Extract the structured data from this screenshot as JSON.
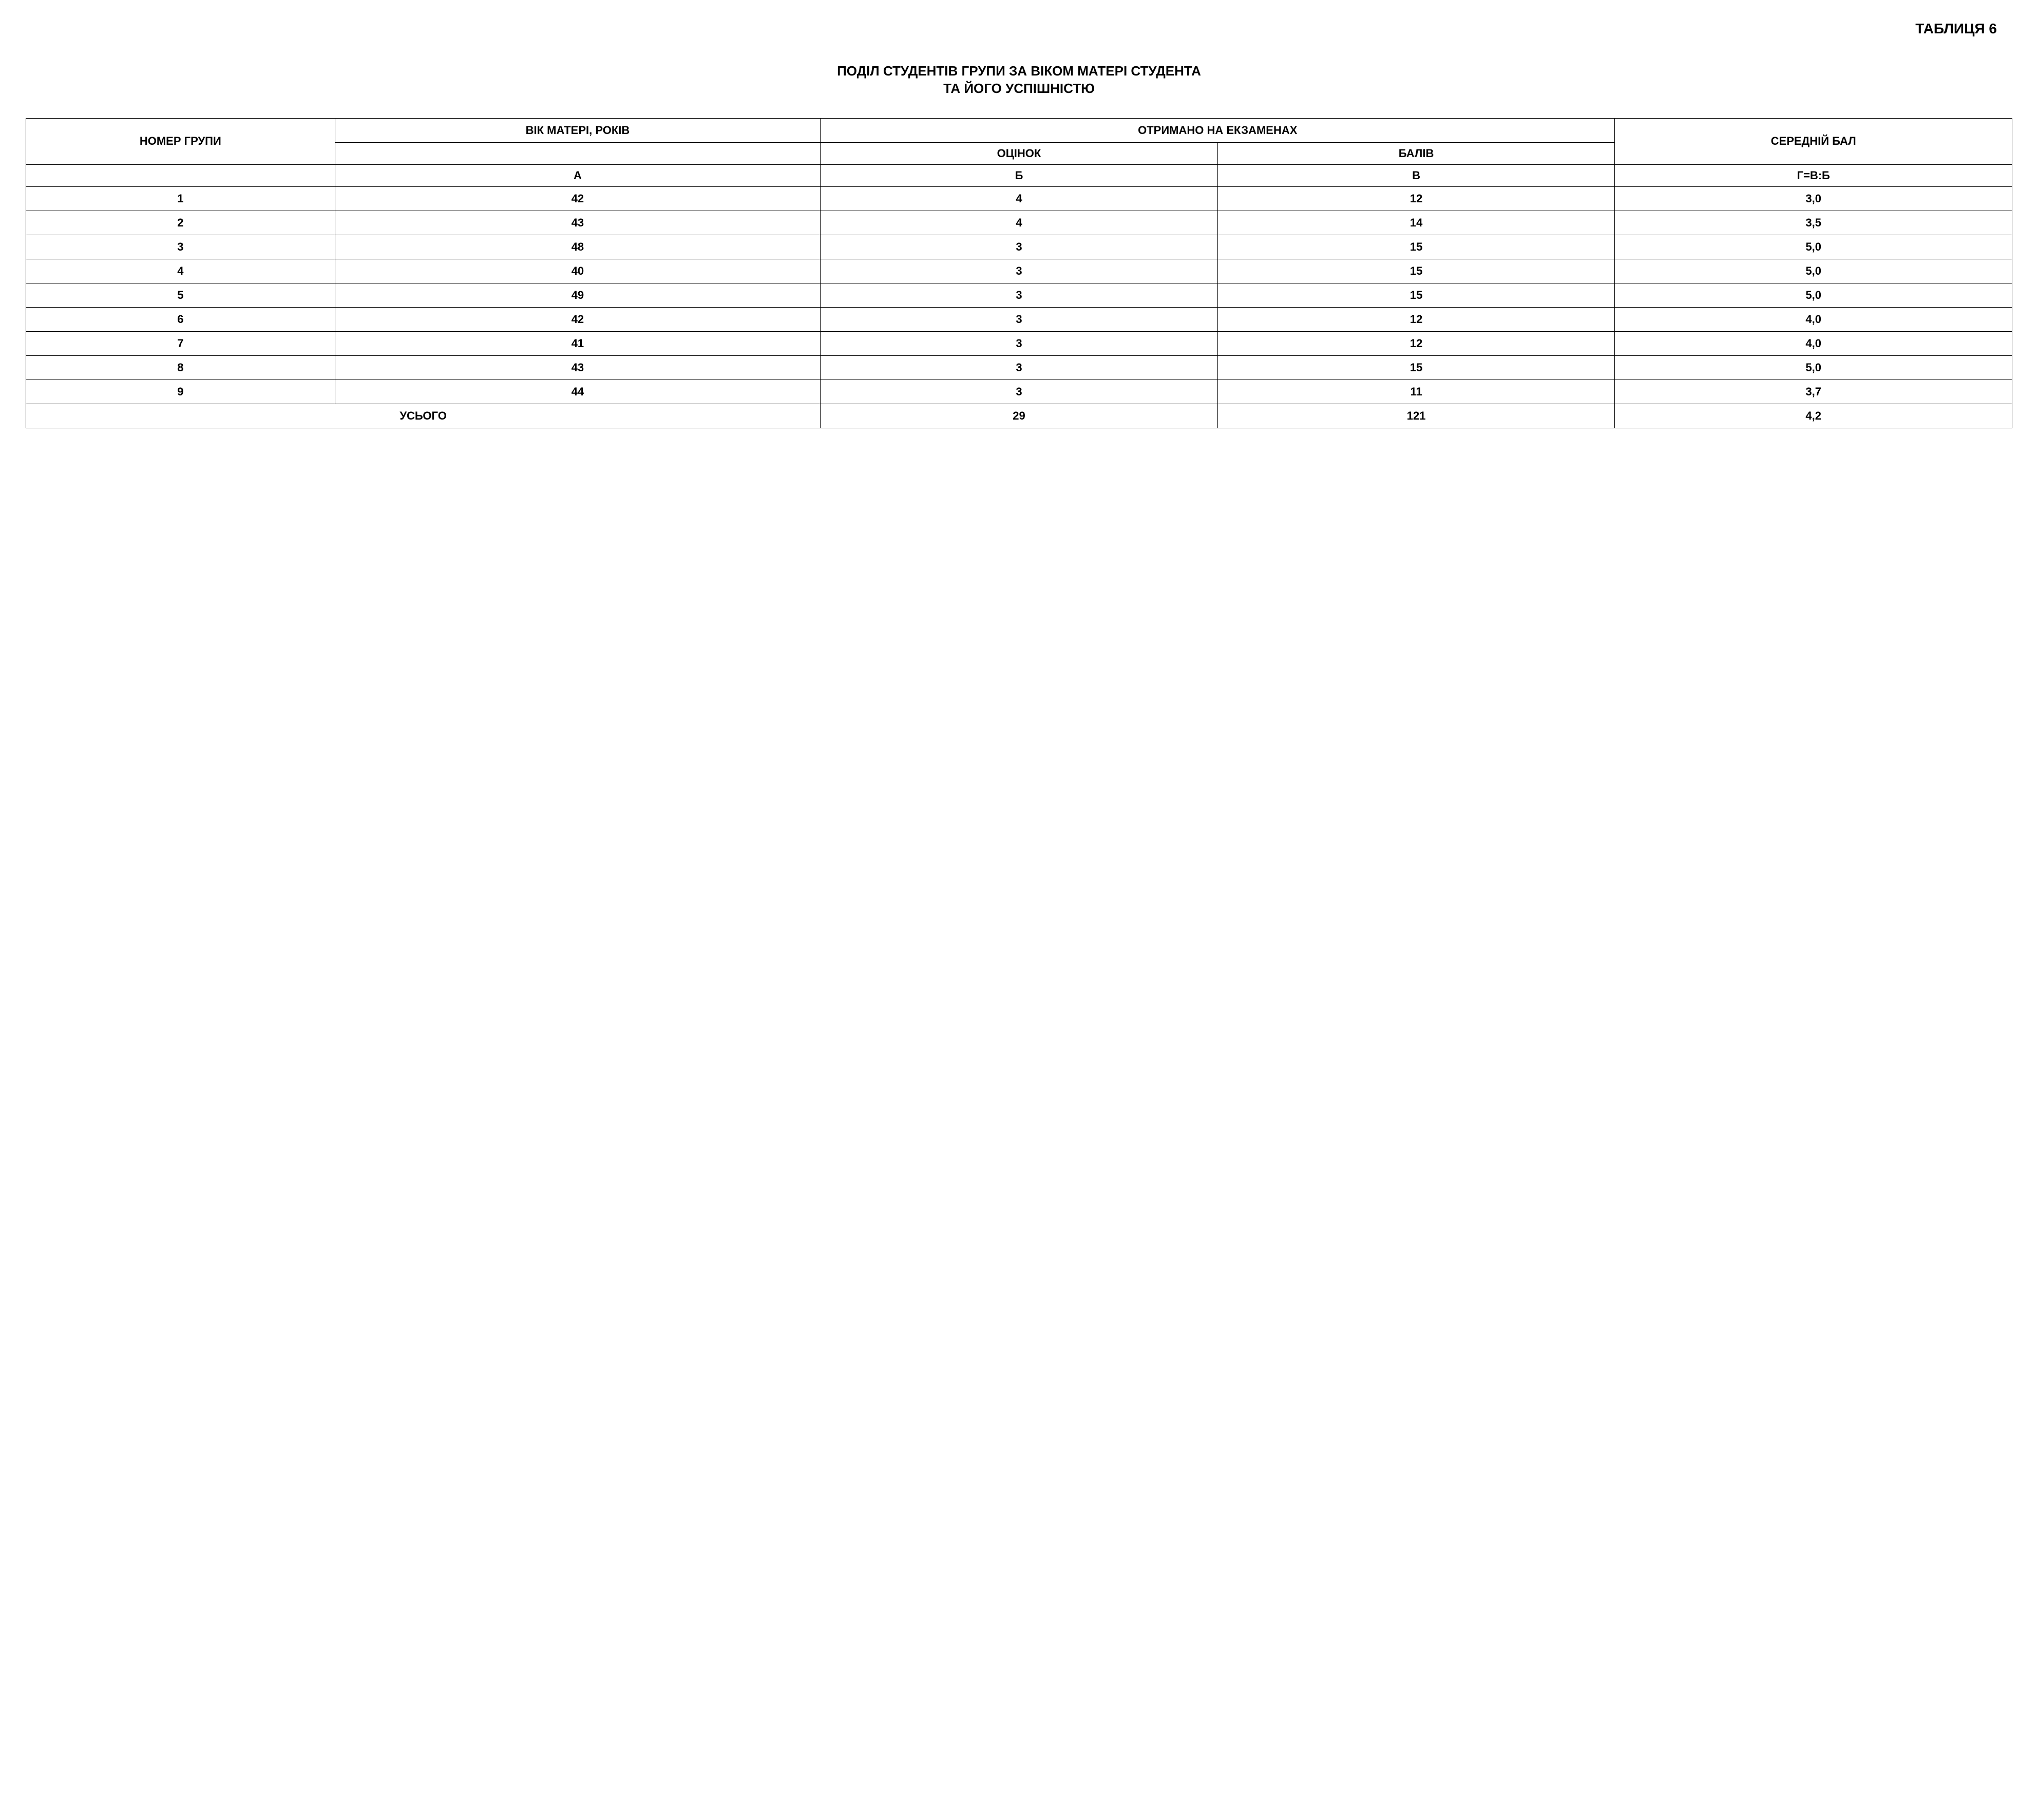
{
  "table_label": "ТАБЛИЦЯ 6",
  "title_line1": "ПОДІЛ СТУДЕНТІВ ГРУПИ ЗА ВІКОМ МАТЕРІ СТУДЕНТА",
  "title_line2": "ТА ЙОГО УСПІШНІСТЮ",
  "headers": {
    "group_number": "НОМЕР ГРУПИ",
    "mother_age": "ВІК МАТЕРІ, РОКІВ",
    "exam_results": "ОТРИМАНО НА ЕКЗАМЕНАХ",
    "grades": "ОЦІНОК",
    "points": "БАЛІВ",
    "avg_score": "СЕРЕДНІЙ БАЛ"
  },
  "letter_row": {
    "col_a": "А",
    "col_b": "Б",
    "col_v": "В",
    "col_g": "Г=В:Б"
  },
  "rows": [
    {
      "num": "1",
      "age": "42",
      "grades": "4",
      "points": "12",
      "avg": "3,0"
    },
    {
      "num": "2",
      "age": "43",
      "grades": "4",
      "points": "14",
      "avg": "3,5"
    },
    {
      "num": "3",
      "age": "48",
      "grades": "3",
      "points": "15",
      "avg": "5,0"
    },
    {
      "num": "4",
      "age": "40",
      "grades": "3",
      "points": "15",
      "avg": "5,0"
    },
    {
      "num": "5",
      "age": "49",
      "grades": "3",
      "points": "15",
      "avg": "5,0"
    },
    {
      "num": "6",
      "age": "42",
      "grades": "3",
      "points": "12",
      "avg": "4,0"
    },
    {
      "num": "7",
      "age": "41",
      "grades": "3",
      "points": "12",
      "avg": "4,0"
    },
    {
      "num": "8",
      "age": "43",
      "grades": "3",
      "points": "15",
      "avg": "5,0"
    },
    {
      "num": "9",
      "age": "44",
      "grades": "3",
      "points": "11",
      "avg": "3,7"
    }
  ],
  "totals": {
    "label": "УСЬОГО",
    "grades": "29",
    "points": "121",
    "avg": "4,2"
  },
  "styling": {
    "type": "table",
    "background_color": "#ffffff",
    "text_color": "#000000",
    "border_color": "#000000",
    "border_width": 1,
    "font_family": "Arial",
    "title_fontsize": 26,
    "label_fontsize": 28,
    "cell_fontsize": 22,
    "font_weight": "bold",
    "text_align": "center",
    "column_widths_pct": [
      14,
      22,
      18,
      18,
      18
    ]
  }
}
